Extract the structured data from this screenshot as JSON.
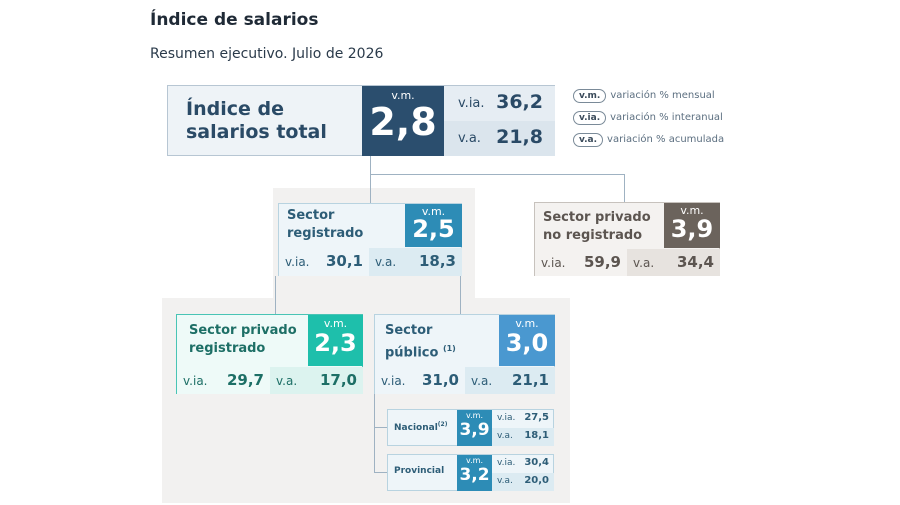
{
  "title": "Índice de salarios",
  "subtitle": "Resumen ejecutivo. Julio de 2026",
  "legend": [
    {
      "abbr": "v.m.",
      "text": "variación % mensual"
    },
    {
      "abbr": "v.ia.",
      "text": "variación % interanual"
    },
    {
      "abbr": "v.a.",
      "text": "variación % acumulada"
    }
  ],
  "labels": {
    "vm": "v.m.",
    "via": "v.ia.",
    "va": "v.a."
  },
  "total": {
    "name_line1": "Índice de",
    "name_line2": "salarios total",
    "vm": "2,8",
    "via": "36,2",
    "va": "21,8"
  },
  "sector_registrado": {
    "name_line1": "Sector",
    "name_line2": "registrado",
    "vm": "2,5",
    "via": "30,1",
    "va": "18,3"
  },
  "sector_privado_no_registrado": {
    "name_line1": "Sector privado",
    "name_line2": "no registrado",
    "vm": "3,9",
    "via": "59,9",
    "va": "34,4"
  },
  "sector_privado_registrado": {
    "name_line1": "Sector privado",
    "name_line2": "registrado",
    "vm": "2,3",
    "via": "29,7",
    "va": "17,0"
  },
  "sector_publico": {
    "name_line1": "Sector",
    "name_line2": "público",
    "note": "(1)",
    "vm": "3,0",
    "via": "31,0",
    "va": "21,1"
  },
  "nacional": {
    "name": "Nacional",
    "note": "(2)",
    "vm": "3,9",
    "via": "27,5",
    "va": "18,1"
  },
  "provincial": {
    "name": "Provincial",
    "vm": "3,2",
    "via": "30,4",
    "va": "20,0"
  },
  "colors": {
    "total": "#2b4e6e",
    "registrado": "#2d8cb6",
    "no_registrado": "#6b635c",
    "privado_registrado": "#1ebfab",
    "publico": "#4a98d0"
  }
}
